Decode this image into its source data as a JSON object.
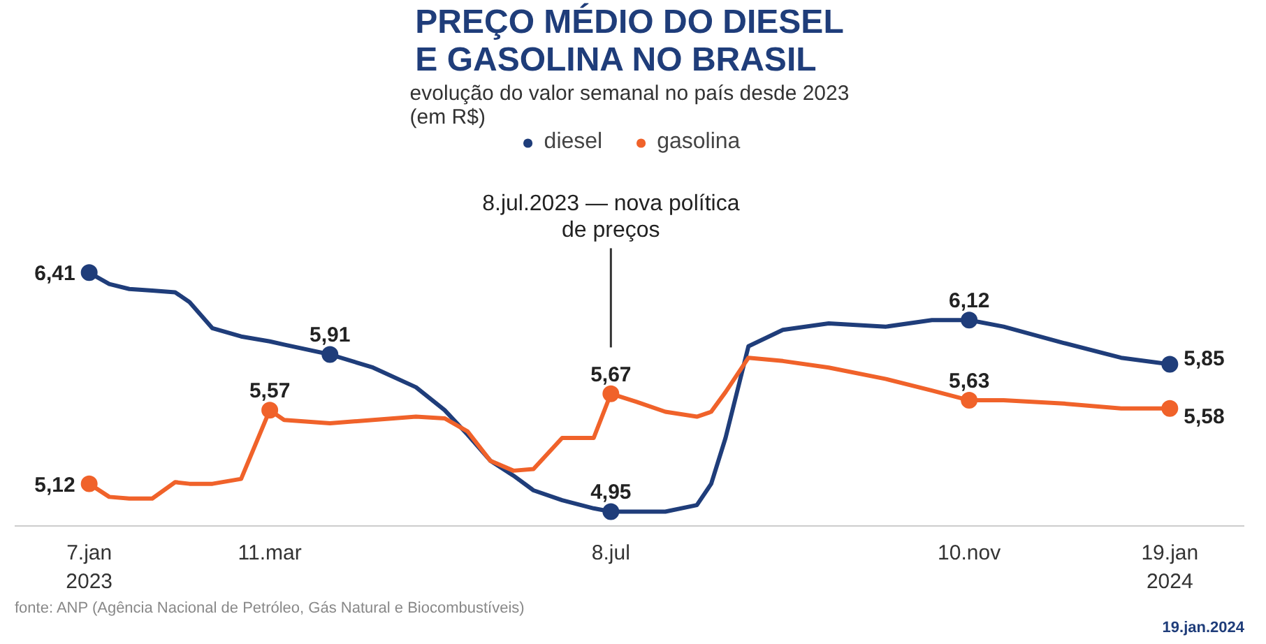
{
  "chart_data": {
    "type": "line",
    "title": "PREÇO MÉDIO DO DIESEL\nE GASOLINA NO BRASIL",
    "subtitle": "evolução do valor semanal no país desde 2023\n(em R$)",
    "x": [
      "2023-01-07",
      "2023-01-14",
      "2023-01-21",
      "2023-01-29",
      "2023-02-06",
      "2023-02-11",
      "2023-02-19",
      "2023-03-01",
      "2023-03-11",
      "2023-03-16",
      "2023-04-01",
      "2023-04-16",
      "2023-05-01",
      "2023-05-11",
      "2023-05-19",
      "2023-05-27",
      "2023-06-04",
      "2023-06-11",
      "2023-06-21",
      "2023-07-02",
      "2023-07-08",
      "2023-07-17",
      "2023-07-27",
      "2023-08-07",
      "2023-08-12",
      "2023-08-17",
      "2023-08-25",
      "2023-09-06",
      "2023-09-22",
      "2023-10-12",
      "2023-10-28",
      "2023-11-10",
      "2023-11-22",
      "2023-12-13",
      "2024-01-02",
      "2024-01-19"
    ],
    "series": [
      {
        "name": "diesel",
        "color": "#1f3d7a",
        "values": [
          6.41,
          6.34,
          6.31,
          6.3,
          6.29,
          6.23,
          6.07,
          6.02,
          5.99,
          5.97,
          5.91,
          5.83,
          5.71,
          5.57,
          5.42,
          5.26,
          5.17,
          5.08,
          5.02,
          4.97,
          4.95,
          4.95,
          4.95,
          4.99,
          5.12,
          5.4,
          5.96,
          6.06,
          6.1,
          6.08,
          6.12,
          6.12,
          6.08,
          5.98,
          5.89,
          5.85
        ],
        "value_labels": [
          "6,41",
          null,
          null,
          null,
          null,
          null,
          null,
          null,
          null,
          null,
          "5,91",
          null,
          null,
          null,
          null,
          null,
          null,
          null,
          null,
          null,
          "4,95",
          null,
          null,
          null,
          null,
          null,
          null,
          null,
          null,
          null,
          null,
          "6,12",
          null,
          null,
          null,
          "5,85"
        ]
      },
      {
        "name": "gasolina",
        "color": "#f0622a",
        "values": [
          5.12,
          5.04,
          5.03,
          5.03,
          5.13,
          5.12,
          5.12,
          5.15,
          5.57,
          5.51,
          5.49,
          5.51,
          5.53,
          5.52,
          5.44,
          5.26,
          5.2,
          5.21,
          5.4,
          5.4,
          5.67,
          5.62,
          5.56,
          5.53,
          5.56,
          5.68,
          5.89,
          5.87,
          5.83,
          5.76,
          5.69,
          5.63,
          5.63,
          5.61,
          5.58,
          5.58
        ],
        "value_labels": [
          "5,12",
          null,
          null,
          null,
          null,
          null,
          null,
          null,
          "5,57",
          null,
          null,
          null,
          null,
          null,
          null,
          null,
          null,
          null,
          null,
          null,
          "5,67",
          null,
          null,
          null,
          null,
          null,
          null,
          null,
          null,
          null,
          null,
          "5,63",
          null,
          null,
          null,
          "5,58"
        ]
      }
    ],
    "xticks": [
      {
        "value": "2023-01-07",
        "label": "7.jan\n2023"
      },
      {
        "value": "2023-03-11",
        "label": "11.mar"
      },
      {
        "value": "2023-07-08",
        "label": "8.jul"
      },
      {
        "value": "2023-11-10",
        "label": "10.nov"
      },
      {
        "value": "2024-01-19",
        "label": "19.jan\n2024"
      }
    ],
    "xlim": [
      "2022-12-12",
      "2024-02-14"
    ],
    "tick_labels": "x",
    "legend": "top",
    "grid": false,
    "ref_lines": [
      {
        "axis": "x",
        "value": "2023-07-08",
        "label": "8.jul.2023 — nova política\nde preços",
        "color": "#333333"
      }
    ],
    "annotations": [
      "fonte: ANP (Agência Nacional de Petróleo, Gás Natural e Biocombustíveis)",
      "19.jan.2024"
    ]
  }
}
